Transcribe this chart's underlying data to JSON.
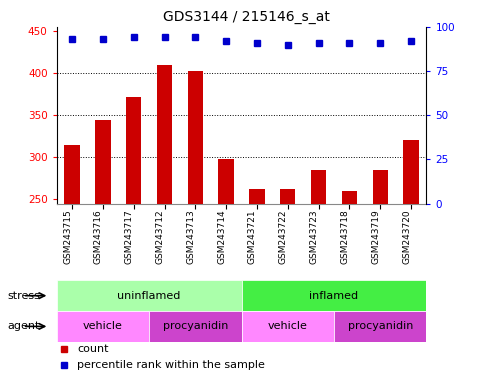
{
  "title": "GDS3144 / 215146_s_at",
  "samples": [
    "GSM243715",
    "GSM243716",
    "GSM243717",
    "GSM243712",
    "GSM243713",
    "GSM243714",
    "GSM243721",
    "GSM243722",
    "GSM243723",
    "GSM243718",
    "GSM243719",
    "GSM243720"
  ],
  "counts": [
    315,
    344,
    372,
    410,
    402,
    298,
    262,
    262,
    285,
    260,
    285,
    321
  ],
  "percentile_ranks": [
    93,
    93,
    94,
    94,
    94,
    92,
    91,
    90,
    91,
    91,
    91,
    92
  ],
  "bar_color": "#cc0000",
  "dot_color": "#0000cc",
  "ylim_left": [
    245,
    455
  ],
  "ylim_right": [
    0,
    100
  ],
  "yticks_left": [
    250,
    300,
    350,
    400,
    450
  ],
  "yticks_right": [
    0,
    25,
    50,
    75,
    100
  ],
  "grid_values": [
    300,
    350,
    400
  ],
  "stress_uninflamed_label": "uninflamed",
  "stress_uninflamed_color": "#aaffaa",
  "stress_inflamed_label": "inflamed",
  "stress_inflamed_color": "#44ee44",
  "agent_vehicle_color": "#ff88ff",
  "agent_procyanidin_color": "#cc44cc",
  "agent_vehicle_label": "vehicle",
  "agent_procyanidin_label": "procyanidin",
  "legend_count_color": "#cc0000",
  "legend_dot_color": "#0000cc",
  "xticklabel_bg": "#cccccc"
}
